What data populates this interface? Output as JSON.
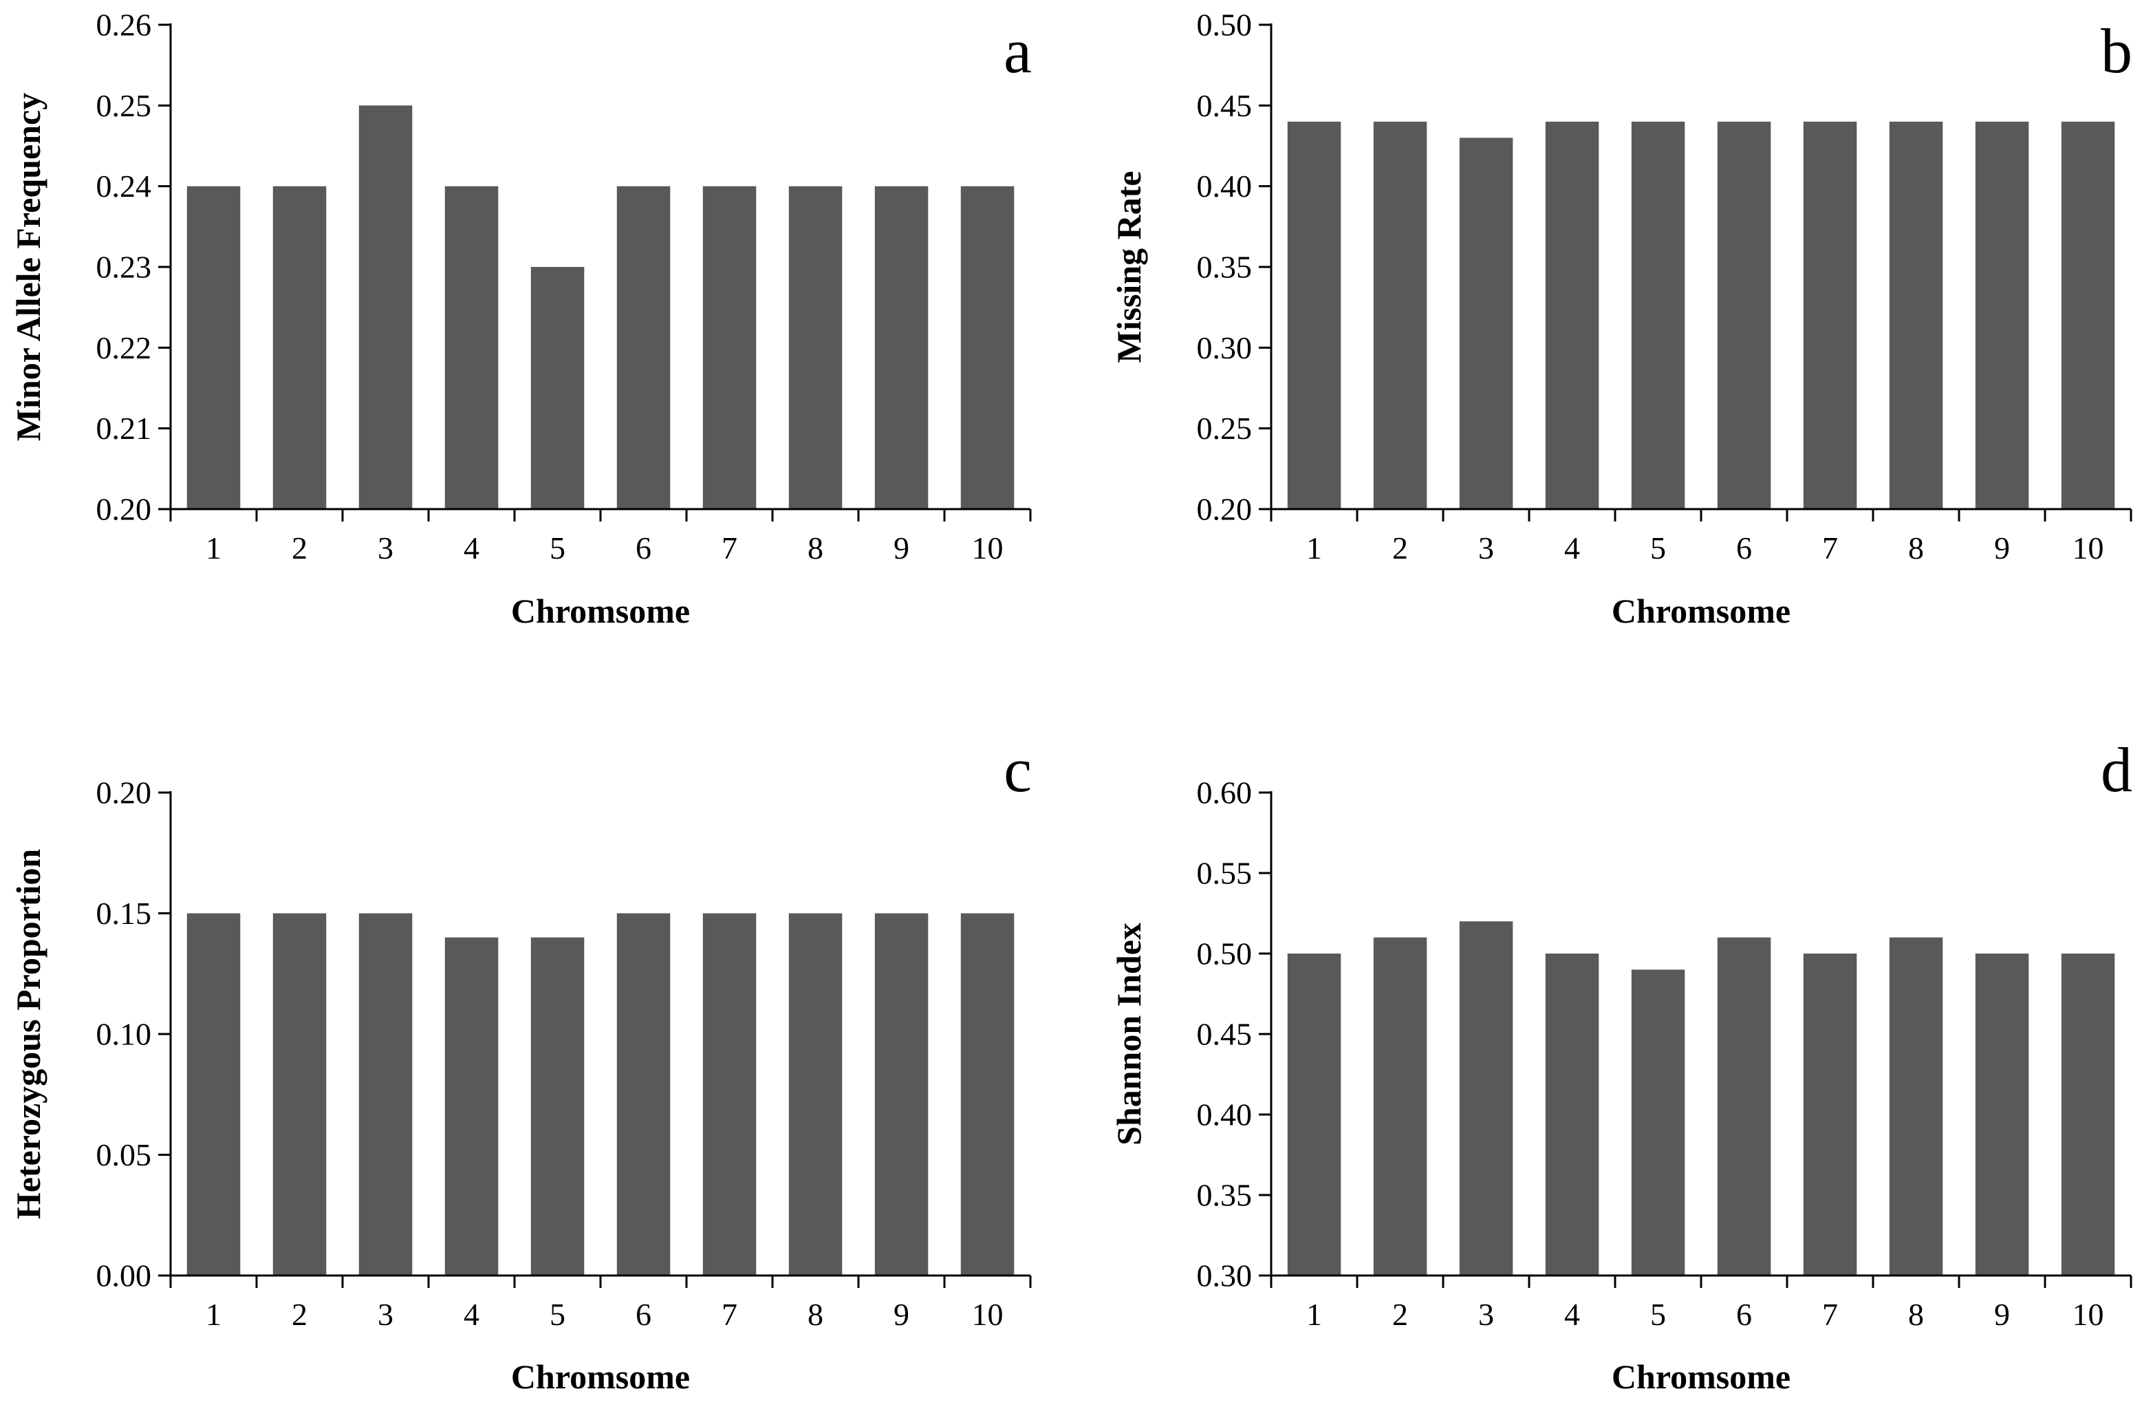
{
  "figure": {
    "bar_color": "#595959",
    "axis_color": "#000000",
    "background": "#ffffff"
  },
  "chart_data": [
    {
      "panel": "a",
      "type": "bar",
      "title": "",
      "xlabel": "Chromsome",
      "ylabel": "Minor Allele Frequency",
      "categories": [
        "1",
        "2",
        "3",
        "4",
        "5",
        "6",
        "7",
        "8",
        "9",
        "10"
      ],
      "values": [
        0.24,
        0.24,
        0.25,
        0.24,
        0.23,
        0.24,
        0.24,
        0.24,
        0.24,
        0.24
      ],
      "ylim": [
        0.2,
        0.26
      ],
      "yticks": [
        "0.20",
        "0.21",
        "0.22",
        "0.23",
        "0.24",
        "0.25",
        "0.26"
      ],
      "grid": false
    },
    {
      "panel": "b",
      "type": "bar",
      "title": "",
      "xlabel": "Chromsome",
      "ylabel": "Missing Rate",
      "categories": [
        "1",
        "2",
        "3",
        "4",
        "5",
        "6",
        "7",
        "8",
        "9",
        "10"
      ],
      "values": [
        0.44,
        0.44,
        0.43,
        0.44,
        0.44,
        0.44,
        0.44,
        0.44,
        0.44,
        0.44
      ],
      "ylim": [
        0.2,
        0.5
      ],
      "yticks": [
        "0.20",
        "0.25",
        "0.30",
        "0.35",
        "0.40",
        "0.45",
        "0.50"
      ],
      "grid": false
    },
    {
      "panel": "c",
      "type": "bar",
      "title": "",
      "xlabel": "Chromsome",
      "ylabel": "Heterozygous Proportion",
      "categories": [
        "1",
        "2",
        "3",
        "4",
        "5",
        "6",
        "7",
        "8",
        "9",
        "10"
      ],
      "values": [
        0.15,
        0.15,
        0.15,
        0.14,
        0.14,
        0.15,
        0.15,
        0.15,
        0.15,
        0.15
      ],
      "ylim": [
        0.0,
        0.2
      ],
      "yticks": [
        "0.00",
        "0.05",
        "0.10",
        "0.15",
        "0.20"
      ],
      "grid": false
    },
    {
      "panel": "d",
      "type": "bar",
      "title": "",
      "xlabel": "Chromsome",
      "ylabel": "Shannon Index",
      "categories": [
        "1",
        "2",
        "3",
        "4",
        "5",
        "6",
        "7",
        "8",
        "9",
        "10"
      ],
      "values": [
        0.5,
        0.51,
        0.52,
        0.5,
        0.49,
        0.51,
        0.5,
        0.51,
        0.5,
        0.5
      ],
      "ylim": [
        0.3,
        0.6
      ],
      "yticks": [
        "0.30",
        "0.35",
        "0.40",
        "0.45",
        "0.50",
        "0.55",
        "0.60"
      ],
      "grid": false
    }
  ]
}
